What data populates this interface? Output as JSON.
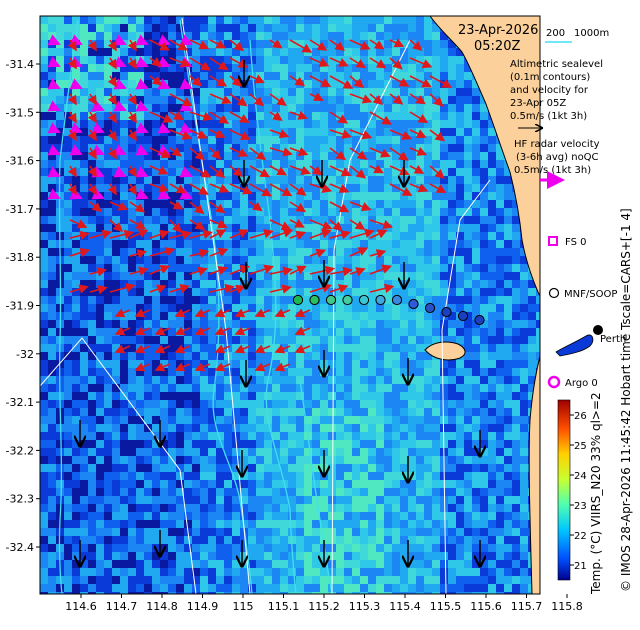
{
  "map": {
    "date_line": "23-Apr-2026",
    "time_line": "05:20Z",
    "scale_bar_value": "200",
    "depth_contour_label": "1000m",
    "altimetry_legend": [
      "Altimetric sealevel",
      "(0.1m contours)",
      "and velocity for",
      "23-Apr 05Z",
      "0.5m/s (1kt 3h)"
    ],
    "radar_legend": [
      "HF radar velocity",
      "(3-6h avg) noQC",
      "0.5m/s (1kt 3h)"
    ],
    "stations": {
      "fs": "FS 0",
      "mnf": "MNF/SOOP",
      "perth": "Perth",
      "argo": "Argo 0"
    },
    "x_ticks": [
      "114.6",
      "114.7",
      "114.8",
      "114.9",
      "115",
      "115.1",
      "115.2",
      "115.3",
      "115.4",
      "115.5",
      "115.6",
      "115.7",
      "115.8"
    ],
    "y_ticks": [
      "-31.4",
      "-31.5",
      "-31.6",
      "-31.7",
      "-31.8",
      "-31.9",
      "-32",
      "-32.1",
      "-32.2",
      "-32.3",
      "-32.4"
    ],
    "colorbar": {
      "ticks": [
        "26",
        "25",
        "24",
        "23",
        "22",
        "21"
      ],
      "title": "Temp. (°C) VIIRS_N20 33% ql>=2",
      "range": [
        20.5,
        26.5
      ]
    },
    "right_caption": "© IMOS 28-Apr-2026 11:45:42 Hobart time Tscale=CARS+[-1 4]",
    "colors": {
      "land": "#fcd09b",
      "altimetry_arrow": "#e0181b",
      "radar_arrow": "#ee00ee",
      "current_arrow": "#000000",
      "contour": "#40e0f0"
    }
  }
}
